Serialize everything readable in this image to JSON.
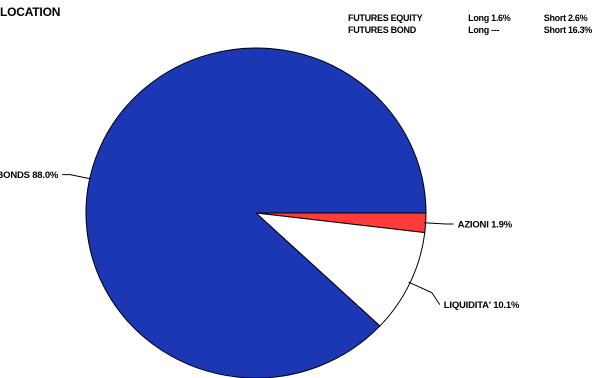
{
  "header": {
    "title": "LOCATION"
  },
  "futures": [
    {
      "name": "FUTURES EQUITY",
      "long": "Long 1.6%",
      "short": "Short 2.6%"
    },
    {
      "name": "FUTURES BOND",
      "long": "Long ---",
      "short": "Short 16.3%"
    }
  ],
  "chart_data": {
    "type": "pie",
    "title": "LOCATION",
    "start_angle_deg": 0,
    "direction": "clockwise",
    "slices": [
      {
        "name": "AZIONI",
        "value": 1.9,
        "label": "AZIONI 1.9%",
        "color": "#ff3b3b"
      },
      {
        "name": "LIQUIDITA'",
        "value": 10.1,
        "label": "LIQUIDITA' 10.1%",
        "color": "#ffffff"
      },
      {
        "name": "BONDS",
        "value": 88.0,
        "label": "BONDS 88.0%",
        "color": "#1c37b4"
      }
    ]
  }
}
